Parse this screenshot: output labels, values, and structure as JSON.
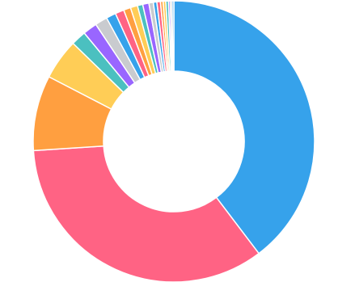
{
  "chart_data": {
    "type": "doughnut",
    "values": [
      39,
      33.7,
      8.5,
      4.6,
      1.7,
      1.6,
      1.4,
      1.1,
      1.0,
      0.8,
      0.8,
      0.6,
      0.7,
      0.5,
      0.4,
      0.4,
      0.3,
      0.3,
      0.3,
      0.2,
      0.2,
      0.2
    ],
    "colors": [
      "#36a2eb",
      "#ff6384",
      "#ff9f40",
      "#ffcd56",
      "#4bc0c0",
      "#9966ff",
      "#c9cbcf",
      "#36a2eb",
      "#ff6384",
      "#ff9f40",
      "#ffcd56",
      "#4bc0c0",
      "#9966ff",
      "#c9cbcf",
      "#36a2eb",
      "#ff6384",
      "#ff9f40",
      "#ffcd56",
      "#4bc0c0",
      "#9966ff",
      "#c9cbcf",
      "#36a2eb"
    ]
  }
}
